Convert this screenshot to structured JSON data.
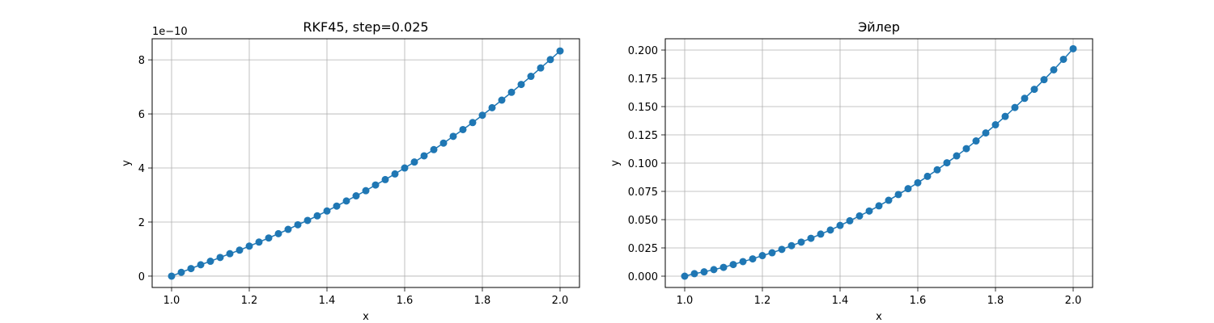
{
  "chart_data": [
    {
      "type": "line",
      "title": "RKF45, step=0.025",
      "xlabel": "x",
      "ylabel": "y",
      "y_offset_label": "1e−10",
      "xlim": [
        0.95,
        2.05
      ],
      "ylim": [
        -0.42,
        8.78
      ],
      "xticks": [
        1.0,
        1.2,
        1.4,
        1.6,
        1.8,
        2.0
      ],
      "xtick_labels": [
        "1.0",
        "1.2",
        "1.4",
        "1.6",
        "1.8",
        "2.0"
      ],
      "yticks": [
        0,
        2,
        4,
        6,
        8
      ],
      "ytick_labels": [
        "0",
        "2",
        "4",
        "6",
        "8"
      ],
      "grid": true,
      "color": "#1f77b4",
      "x": [
        1.0,
        1.025,
        1.05,
        1.075,
        1.1,
        1.125,
        1.15,
        1.175,
        1.2,
        1.225,
        1.25,
        1.275,
        1.3,
        1.325,
        1.35,
        1.375,
        1.4,
        1.425,
        1.45,
        1.475,
        1.5,
        1.525,
        1.55,
        1.575,
        1.6,
        1.625,
        1.65,
        1.675,
        1.7,
        1.725,
        1.75,
        1.775,
        1.8,
        1.825,
        1.85,
        1.875,
        1.9,
        1.925,
        1.95,
        1.975,
        2.0
      ],
      "y": [
        0.0,
        0.14,
        0.28,
        0.42,
        0.55,
        0.69,
        0.83,
        0.96,
        1.11,
        1.26,
        1.41,
        1.57,
        1.73,
        1.9,
        2.06,
        2.23,
        2.41,
        2.59,
        2.78,
        2.97,
        3.16,
        3.37,
        3.57,
        3.78,
        4.0,
        4.22,
        4.45,
        4.68,
        4.92,
        5.17,
        5.42,
        5.68,
        5.95,
        6.23,
        6.51,
        6.8,
        7.09,
        7.39,
        7.7,
        8.01,
        8.33
      ]
    },
    {
      "type": "line",
      "title": "Эйлер",
      "xlabel": "x",
      "ylabel": "y",
      "xlim": [
        0.95,
        2.05
      ],
      "ylim": [
        -0.01,
        0.21
      ],
      "xticks": [
        1.0,
        1.2,
        1.4,
        1.6,
        1.8,
        2.0
      ],
      "xtick_labels": [
        "1.0",
        "1.2",
        "1.4",
        "1.6",
        "1.8",
        "2.0"
      ],
      "yticks": [
        0.0,
        0.025,
        0.05,
        0.075,
        0.1,
        0.125,
        0.15,
        0.175,
        0.2
      ],
      "ytick_labels": [
        "0.000",
        "0.025",
        "0.050",
        "0.075",
        "0.100",
        "0.125",
        "0.150",
        "0.175",
        "0.200"
      ],
      "grid": true,
      "color": "#1f77b4",
      "x": [
        1.0,
        1.025,
        1.05,
        1.075,
        1.1,
        1.125,
        1.15,
        1.175,
        1.2,
        1.225,
        1.25,
        1.275,
        1.3,
        1.325,
        1.35,
        1.375,
        1.4,
        1.425,
        1.45,
        1.475,
        1.5,
        1.525,
        1.55,
        1.575,
        1.6,
        1.625,
        1.65,
        1.675,
        1.7,
        1.725,
        1.75,
        1.775,
        1.8,
        1.825,
        1.85,
        1.875,
        1.9,
        1.925,
        1.95,
        1.975,
        2.0
      ],
      "y": [
        0.0,
        0.0022,
        0.0038,
        0.0058,
        0.0078,
        0.0103,
        0.0129,
        0.0153,
        0.0182,
        0.0207,
        0.0237,
        0.027,
        0.0301,
        0.0335,
        0.0372,
        0.0408,
        0.0449,
        0.049,
        0.0533,
        0.0576,
        0.0622,
        0.0671,
        0.0722,
        0.0774,
        0.0826,
        0.0883,
        0.0941,
        0.1003,
        0.1064,
        0.1128,
        0.1196,
        0.1267,
        0.1339,
        0.1413,
        0.1492,
        0.1573,
        0.1653,
        0.1738,
        0.1825,
        0.1918,
        0.2012
      ]
    }
  ]
}
